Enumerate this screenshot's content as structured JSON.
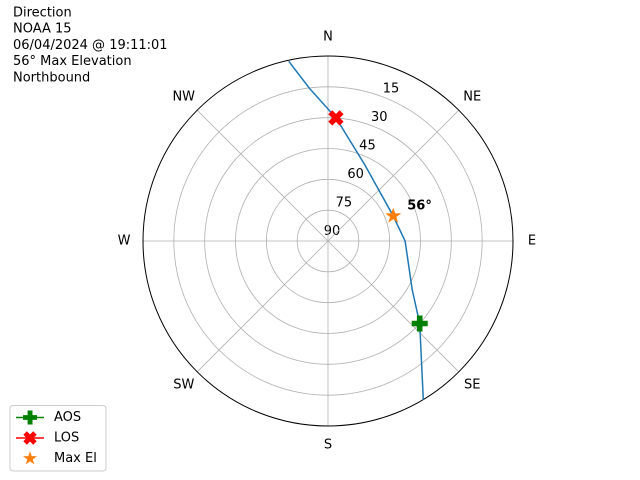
{
  "chart_data": {
    "type": "polar",
    "title_lines": [
      "Direction",
      "NOAA 15",
      "06/04/2024 @ 19:11:01",
      "56° Max Elevation",
      "Northbound"
    ],
    "rlim": [
      90,
      0
    ],
    "rticks": [
      15,
      30,
      45,
      60,
      75,
      90
    ],
    "thetaticks": [
      0,
      45,
      90,
      135,
      180,
      225,
      270,
      315
    ],
    "theta_labels": [
      "N",
      "NE",
      "E",
      "SE",
      "S",
      "SW",
      "W",
      "NW"
    ],
    "grid": true,
    "track": {
      "color": "#1f77b4",
      "azimuth": [
        149,
        132,
        120,
        90,
        69,
        26,
        3.7,
        353,
        347.7
      ],
      "elevation": [
        0,
        30,
        42.7,
        52.5,
        56,
        48.9,
        30,
        15,
        0.5
      ]
    },
    "series": [
      {
        "name": "AOS",
        "color": "#008000",
        "marker": "plus",
        "azimuth": [
          132
        ],
        "elevation": [
          30
        ]
      },
      {
        "name": "LOS",
        "color": "#ff0000",
        "marker": "x",
        "azimuth": [
          3.7
        ],
        "elevation": [
          30
        ]
      },
      {
        "name": "Max El",
        "color": "#ff7f0e",
        "marker": "star",
        "azimuth": [
          69
        ],
        "elevation": [
          56
        ],
        "value_labels": [
          "56°"
        ]
      }
    ],
    "legend": "lower left"
  }
}
